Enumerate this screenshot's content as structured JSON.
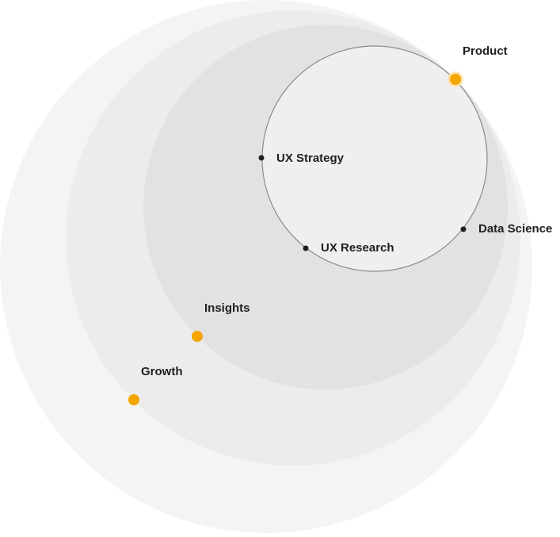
{
  "colors": {
    "ring_outer": "#f4f4f4",
    "ring_second": "#ececec",
    "ring_third": "#e2e2e2",
    "inner_circle_fill": "#efefef",
    "inner_circle_stroke": "#8c8c8c",
    "accent_dot": "#f5a500",
    "accent_halo": "#fde2a6",
    "small_dot": "#1f1f1f",
    "label_text": "#1f1f1f"
  },
  "labels": {
    "product": "Product",
    "ux_strategy": "UX Strategy",
    "data_science": "Data Science",
    "ux_research": "UX Research",
    "insights": "Insights",
    "growth": "Growth"
  }
}
